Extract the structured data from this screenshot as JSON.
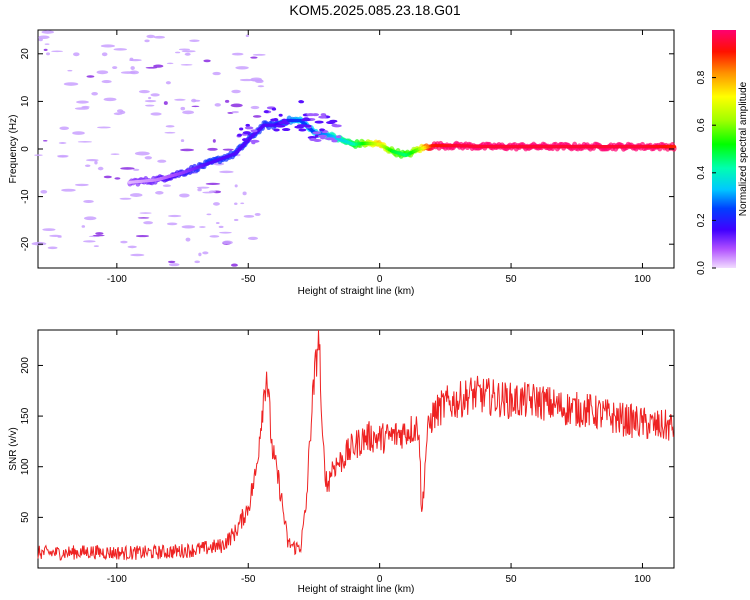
{
  "title": "KOM5.2025.085.23.18.G01",
  "colors": {
    "snr_line": "#ee2222",
    "axis": "#000000",
    "background": "#ffffff"
  },
  "chart_data": [
    {
      "type": "heatmap",
      "title": "KOM5.2025.085.23.18.G01",
      "xlabel": "Height of straight line (km)",
      "ylabel": "Frequency (Hz)",
      "xlim": [
        -130,
        112
      ],
      "ylim": [
        -25,
        25
      ],
      "x_ticks": [
        -100,
        -50,
        0,
        50,
        100
      ],
      "y_ticks": [
        -20,
        -10,
        0,
        10,
        20
      ],
      "colorbar": {
        "label": "Normalized spectral amplitude",
        "range": [
          0.0,
          1.0
        ],
        "ticks": [
          0.0,
          0.2,
          0.4,
          0.6,
          0.8
        ],
        "colormap": "rainbow"
      },
      "ridge": {
        "x": [
          -95,
          -85,
          -75,
          -65,
          -55,
          -48,
          -44,
          -40,
          -35,
          -30,
          -25,
          -20,
          -15,
          -10,
          -5,
          0,
          5,
          10,
          15,
          20,
          30,
          40,
          60,
          80,
          100,
          112
        ],
        "frequency": [
          -7,
          -6.5,
          -5,
          -3,
          -1,
          3,
          5,
          5,
          6,
          6,
          3.5,
          3,
          2,
          1,
          1.2,
          1,
          -0.5,
          -1.3,
          0,
          0.7,
          0.7,
          0.5,
          0.5,
          0.5,
          0.5,
          0.5
        ],
        "amplitude": [
          0.02,
          0.05,
          0.1,
          0.15,
          0.15,
          0.15,
          0.15,
          0.15,
          0.2,
          0.25,
          0.25,
          0.3,
          0.35,
          0.4,
          0.55,
          0.7,
          0.5,
          0.45,
          0.6,
          0.9,
          0.95,
          0.95,
          0.95,
          0.95,
          0.95,
          0.9
        ]
      }
    },
    {
      "type": "line",
      "xlabel": "Height of straight line (km)",
      "ylabel": "SNR (v/v)",
      "xlim": [
        -130,
        112
      ],
      "ylim": [
        0,
        235
      ],
      "x_ticks": [
        -100,
        -50,
        0,
        50,
        100
      ],
      "y_ticks": [
        50,
        100,
        150,
        200
      ],
      "series": [
        {
          "x": [
            -130,
            -120,
            -110,
            -100,
            -90,
            -80,
            -70,
            -60,
            -55,
            -50,
            -47,
            -45,
            -43,
            -41,
            -40,
            -38,
            -35,
            -32,
            -30,
            -28,
            -26,
            -24,
            -23,
            -22,
            -20,
            -18,
            -15,
            -10,
            -5,
            0,
            5,
            10,
            15,
            16,
            18,
            20,
            25,
            30,
            35,
            40,
            50,
            60,
            70,
            80,
            90,
            100,
            105,
            110,
            112
          ],
          "snr": [
            15,
            15,
            16,
            15,
            15,
            16,
            18,
            22,
            35,
            60,
            95,
            150,
            195,
            120,
            105,
            80,
            25,
            20,
            22,
            60,
            150,
            210,
            235,
            130,
            80,
            100,
            105,
            120,
            130,
            128,
            130,
            135,
            140,
            50,
            130,
            150,
            162,
            165,
            172,
            170,
            165,
            165,
            158,
            155,
            148,
            143,
            140,
            140,
            138
          ],
          "noise": 12
        }
      ]
    }
  ]
}
